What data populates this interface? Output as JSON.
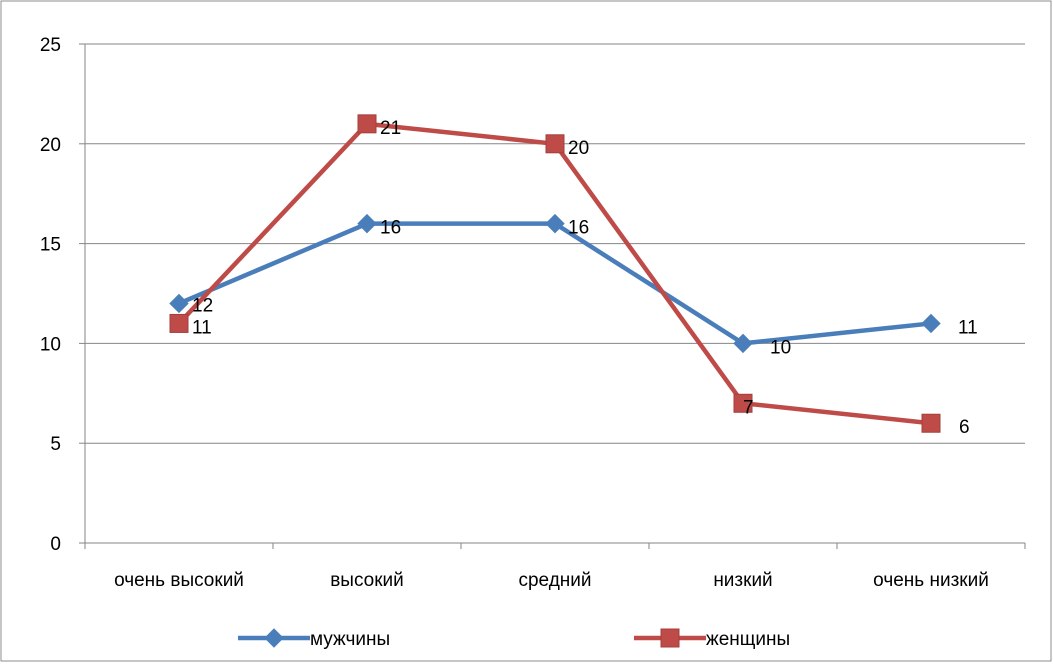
{
  "chart_data": {
    "type": "line",
    "categories": [
      "очень высокий",
      "высокий",
      "средний",
      "низкий",
      "очень низкий"
    ],
    "ylim": [
      0,
      25
    ],
    "yticks": [
      "0",
      "5",
      "10",
      "15",
      "20",
      "25"
    ],
    "grid": true,
    "legend_position": "bottom",
    "series": [
      {
        "name": "мужчины",
        "values": [
          12,
          16,
          16,
          10,
          11
        ],
        "labels": [
          "12",
          "16",
          "16",
          "10",
          "11"
        ],
        "color": "#4a7ebb",
        "marker": "diamond-icon"
      },
      {
        "name": "женщины",
        "values": [
          11,
          21,
          20,
          7,
          6
        ],
        "labels": [
          "11",
          "21",
          "20",
          "7",
          "6"
        ],
        "color": "#be4b48",
        "marker": "square-icon"
      }
    ]
  }
}
